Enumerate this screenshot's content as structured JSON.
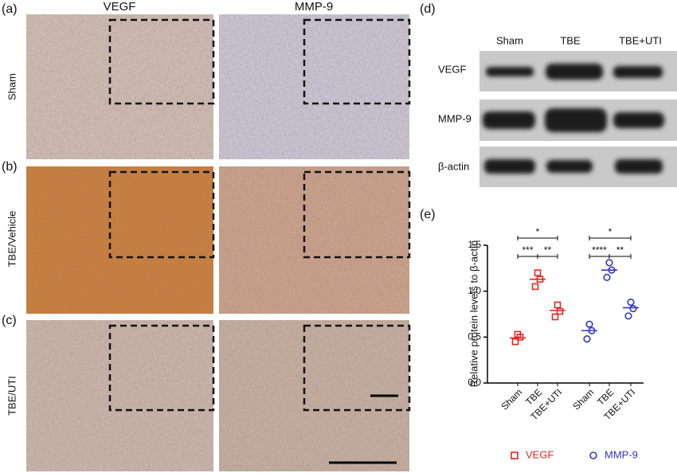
{
  "panel_labels": [
    "(a)",
    "(b)",
    "(c)",
    "(d)",
    "(e)"
  ],
  "columns": [
    "VEGF",
    "MMP-9"
  ],
  "rows": [
    "Sham",
    "TBE/Vehicle",
    "TBE/UTI"
  ],
  "blot": {
    "lanes": [
      "Sham",
      "TBE",
      "TBE+UTI"
    ],
    "proteins": [
      "VEGF",
      "MMP-9",
      "β-actin"
    ]
  },
  "chart_data": {
    "type": "scatter",
    "ylabel": "Relative protein levels to β-actin",
    "categories": [
      "Sham",
      "TBE",
      "TBE+UTI"
    ],
    "ylim": [
      0,
      1.5
    ],
    "yticks": [
      {
        "value": 0,
        "label": "0.0"
      },
      0.5,
      {
        "value": 1,
        "label": "1.0"
      },
      1.5
    ],
    "series": [
      {
        "name": "VEGF",
        "color": "#e3261f",
        "marker": "square",
        "values": [
          [
            0.45,
            0.5,
            0.53
          ],
          [
            1.05,
            1.13,
            1.2
          ],
          [
            0.72,
            0.78,
            0.85
          ]
        ],
        "means": [
          0.49,
          1.13,
          0.79
        ],
        "comparisons": [
          {
            "pair": [
              "Sham",
              "TBE+UTI"
            ],
            "label": "*"
          },
          {
            "pair": [
              "Sham",
              "TBE"
            ],
            "label": "***"
          },
          {
            "pair": [
              "TBE",
              "TBE+UTI"
            ],
            "label": "**"
          }
        ]
      },
      {
        "name": "MMP-9",
        "color": "#3535c4",
        "marker": "circle",
        "values": [
          [
            0.48,
            0.57,
            0.64
          ],
          [
            1.15,
            1.23,
            1.31
          ],
          [
            0.73,
            0.81,
            0.88
          ]
        ],
        "means": [
          0.57,
          1.23,
          0.82
        ],
        "comparisons": [
          {
            "pair": [
              "Sham",
              "TBE+UTI"
            ],
            "label": "*"
          },
          {
            "pair": [
              "Sham",
              "TBE"
            ],
            "label": "****"
          },
          {
            "pair": [
              "TBE",
              "TBE+UTI"
            ],
            "label": "**"
          }
        ]
      }
    ]
  }
}
